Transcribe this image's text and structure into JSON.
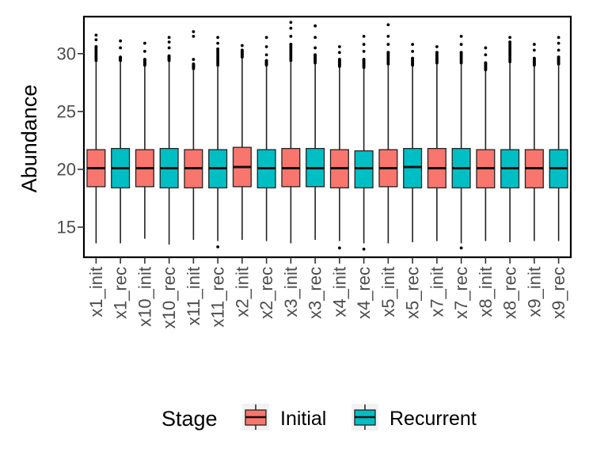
{
  "chart_data": {
    "type": "boxplot",
    "title": "",
    "xlabel": "",
    "ylabel": "Abundance",
    "ylim": [
      12.4,
      33.2
    ],
    "yticks": [
      15,
      20,
      25,
      30
    ],
    "grid": false,
    "legend": {
      "title": "Stage",
      "position": "bottom",
      "entries": [
        {
          "name": "Initial",
          "color": "#F8766D"
        },
        {
          "name": "Recurrent",
          "color": "#00BFC4"
        }
      ]
    },
    "boxes": [
      {
        "label": "x1_init",
        "stage": "Initial",
        "min": 13.6,
        "q1": 18.5,
        "median": 20.1,
        "q3": 21.7,
        "max": 29.4,
        "outliers": [
          31.6,
          31.2,
          30.6
        ]
      },
      {
        "label": "x1_rec",
        "stage": "Recurrent",
        "min": 13.6,
        "q1": 18.4,
        "median": 20.1,
        "q3": 21.8,
        "max": 29.4,
        "outliers": [
          31.1,
          30.5,
          29.7
        ]
      },
      {
        "label": "x10_init",
        "stage": "Initial",
        "min": 14.0,
        "q1": 18.5,
        "median": 20.1,
        "q3": 21.7,
        "max": 29.0,
        "outliers": [
          30.9,
          30.2,
          29.5
        ]
      },
      {
        "label": "x10_rec",
        "stage": "Recurrent",
        "min": 13.5,
        "q1": 18.4,
        "median": 20.1,
        "q3": 21.8,
        "max": 29.4,
        "outliers": [
          31.4,
          31.0,
          30.5,
          29.8
        ]
      },
      {
        "label": "x11_init",
        "stage": "Initial",
        "min": 13.9,
        "q1": 18.4,
        "median": 20.1,
        "q3": 21.7,
        "max": 28.7,
        "outliers": [
          31.9,
          31.5,
          29.5,
          29.1
        ]
      },
      {
        "label": "x11_rec",
        "stage": "Recurrent",
        "min": 13.8,
        "q1": 18.4,
        "median": 20.1,
        "q3": 21.7,
        "max": 29.0,
        "outliers": [
          31.4,
          30.9,
          30.4,
          13.3
        ]
      },
      {
        "label": "x2_init",
        "stage": "Initial",
        "min": 13.9,
        "q1": 18.5,
        "median": 20.2,
        "q3": 21.9,
        "max": 29.7,
        "outliers": [
          30.7,
          30.3
        ]
      },
      {
        "label": "x2_rec",
        "stage": "Recurrent",
        "min": 13.8,
        "q1": 18.4,
        "median": 20.1,
        "q3": 21.7,
        "max": 29.0,
        "outliers": [
          31.4,
          30.6,
          29.9,
          29.4
        ]
      },
      {
        "label": "x3_init",
        "stage": "Initial",
        "min": 13.6,
        "q1": 18.5,
        "median": 20.1,
        "q3": 21.8,
        "max": 29.4,
        "outliers": [
          32.7,
          32.2,
          31.5,
          30.8
        ]
      },
      {
        "label": "x3_rec",
        "stage": "Recurrent",
        "min": 13.9,
        "q1": 18.5,
        "median": 20.1,
        "q3": 21.8,
        "max": 29.2,
        "outliers": [
          32.4,
          31.4,
          30.5,
          29.9
        ]
      },
      {
        "label": "x4_init",
        "stage": "Initial",
        "min": 13.8,
        "q1": 18.4,
        "median": 20.1,
        "q3": 21.7,
        "max": 28.9,
        "outliers": [
          30.6,
          30.1,
          29.5,
          13.2
        ]
      },
      {
        "label": "x4_rec",
        "stage": "Recurrent",
        "min": 13.6,
        "q1": 18.4,
        "median": 20.1,
        "q3": 21.6,
        "max": 28.8,
        "outliers": [
          31.5,
          30.8,
          30.2,
          29.5,
          13.1
        ]
      },
      {
        "label": "x5_init",
        "stage": "Initial",
        "min": 13.6,
        "q1": 18.5,
        "median": 20.1,
        "q3": 21.7,
        "max": 29.1,
        "outliers": [
          32.5,
          31.5,
          30.8,
          30.1
        ]
      },
      {
        "label": "x5_rec",
        "stage": "Recurrent",
        "min": 13.7,
        "q1": 18.4,
        "median": 20.2,
        "q3": 21.8,
        "max": 29.0,
        "outliers": [
          30.8,
          30.2,
          29.6
        ]
      },
      {
        "label": "x7_init",
        "stage": "Initial",
        "min": 13.8,
        "q1": 18.4,
        "median": 20.1,
        "q3": 21.8,
        "max": 29.2,
        "outliers": [
          30.6,
          30.1
        ]
      },
      {
        "label": "x7_rec",
        "stage": "Recurrent",
        "min": 13.6,
        "q1": 18.4,
        "median": 20.1,
        "q3": 21.8,
        "max": 29.2,
        "outliers": [
          31.5,
          30.8,
          30.1,
          13.2
        ]
      },
      {
        "label": "x8_init",
        "stage": "Initial",
        "min": 13.8,
        "q1": 18.4,
        "median": 20.1,
        "q3": 21.7,
        "max": 28.6,
        "outliers": [
          30.5,
          29.9,
          29.2
        ]
      },
      {
        "label": "x8_rec",
        "stage": "Recurrent",
        "min": 13.7,
        "q1": 18.4,
        "median": 20.1,
        "q3": 21.7,
        "max": 29.3,
        "outliers": [
          31.4,
          31.0
        ]
      },
      {
        "label": "x9_init",
        "stage": "Initial",
        "min": 13.8,
        "q1": 18.4,
        "median": 20.1,
        "q3": 21.7,
        "max": 29.0,
        "outliers": [
          30.8,
          30.3,
          29.6
        ]
      },
      {
        "label": "x9_rec",
        "stage": "Recurrent",
        "min": 13.8,
        "q1": 18.4,
        "median": 20.1,
        "q3": 21.7,
        "max": 29.1,
        "outliers": [
          31.4,
          30.9,
          30.3,
          29.7
        ]
      }
    ]
  }
}
